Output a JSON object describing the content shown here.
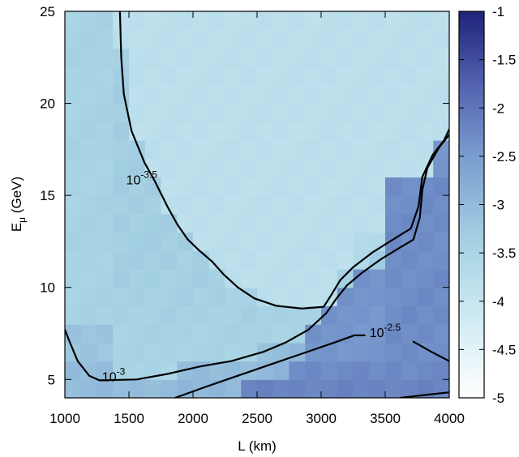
{
  "chart_data": {
    "type": "heatmap",
    "title": "",
    "xlabel": "L (km)",
    "ylabel": {
      "text": "E",
      "sub": "μ",
      "rest": " (GeV)"
    },
    "xlim": [
      1000,
      4000
    ],
    "ylim": [
      4,
      25
    ],
    "x_ticks": [
      "1000",
      "1500",
      "2000",
      "2500",
      "3000",
      "3500",
      "4000"
    ],
    "y_ticks": [
      "5",
      "10",
      "15",
      "20",
      "25"
    ],
    "colorbar": {
      "range": [
        -5,
        -1
      ],
      "ticks": [
        "-1",
        "-1.5",
        "-2",
        "-2.5",
        "-3",
        "-3.5",
        "-4",
        "-4.5",
        "-5"
      ],
      "colors": [
        "#ffffff",
        "#cce9f2",
        "#a6d2e3",
        "#7b9ed0",
        "#5566b0",
        "#1e237a"
      ]
    },
    "grid": {
      "x_edges": [
        1000,
        4000
      ],
      "y_edges": [
        4,
        25
      ],
      "cols": 24,
      "rows": 21,
      "comment_free": true
    },
    "contours": [
      {
        "label": {
          "base": "10",
          "exp": "-3.5"
        },
        "label_at": [
          1600,
          15.6
        ],
        "level": -3.5,
        "points": [
          [
            1430,
            25
          ],
          [
            1440,
            22.5
          ],
          [
            1460,
            20.5
          ],
          [
            1520,
            18.5
          ],
          [
            1620,
            16.8
          ],
          [
            1700,
            15.8
          ],
          [
            1800,
            14.4
          ],
          [
            1880,
            13.4
          ],
          [
            1960,
            12.6
          ],
          [
            2050,
            12.0
          ],
          [
            2150,
            11.4
          ],
          [
            2240,
            10.7
          ],
          [
            2350,
            10.0
          ],
          [
            2480,
            9.4
          ],
          [
            2650,
            9.0
          ],
          [
            2850,
            8.85
          ],
          [
            3020,
            8.95
          ],
          [
            3080,
            9.6
          ],
          [
            3150,
            10.4
          ],
          [
            3250,
            11.1
          ],
          [
            3400,
            11.9
          ],
          [
            3560,
            12.6
          ],
          [
            3700,
            13.2
          ],
          [
            3760,
            14.4
          ],
          [
            3790,
            16.0
          ],
          [
            3870,
            17.2
          ],
          [
            3960,
            18.0
          ],
          [
            4000,
            18.6
          ]
        ]
      },
      {
        "label": {
          "base": "10",
          "exp": "-3"
        },
        "label_at": [
          1380,
          4.9
        ],
        "level": -3,
        "points": [
          [
            1000,
            7.7
          ],
          [
            1040,
            7.0
          ],
          [
            1100,
            6.0
          ],
          [
            1190,
            5.2
          ],
          [
            1270,
            4.95
          ],
          [
            1560,
            5.0
          ],
          [
            1800,
            5.3
          ],
          [
            2050,
            5.7
          ],
          [
            2300,
            6.0
          ],
          [
            2550,
            6.5
          ],
          [
            2720,
            7.0
          ],
          [
            2900,
            7.7
          ],
          [
            3040,
            8.6
          ],
          [
            3120,
            9.4
          ],
          [
            3200,
            10.1
          ],
          [
            3320,
            10.8
          ],
          [
            3460,
            11.5
          ],
          [
            3600,
            12.1
          ],
          [
            3720,
            12.6
          ],
          [
            3770,
            13.8
          ],
          [
            3790,
            15.3
          ],
          [
            3830,
            16.5
          ],
          [
            3920,
            17.6
          ],
          [
            4000,
            18.3
          ]
        ]
      },
      {
        "label": {
          "base": "10",
          "exp": "-2.5"
        },
        "label_at": [
          3500,
          7.3
        ],
        "level": -2.5,
        "points": [
          [
            1860,
            4.0
          ],
          [
            2100,
            4.6
          ],
          [
            2350,
            5.2
          ],
          [
            2600,
            5.8
          ],
          [
            2850,
            6.4
          ],
          [
            3100,
            7.0
          ],
          [
            3260,
            7.4
          ],
          [
            3340,
            7.4
          ]
        ]
      },
      {
        "label": null,
        "level": -2.5,
        "points": [
          [
            3720,
            7.05
          ],
          [
            3860,
            6.5
          ],
          [
            4000,
            6.0
          ]
        ]
      },
      {
        "label": null,
        "level": -2,
        "points": [
          [
            3620,
            4.0
          ],
          [
            3800,
            4.15
          ],
          [
            4000,
            4.3
          ]
        ]
      }
    ]
  }
}
